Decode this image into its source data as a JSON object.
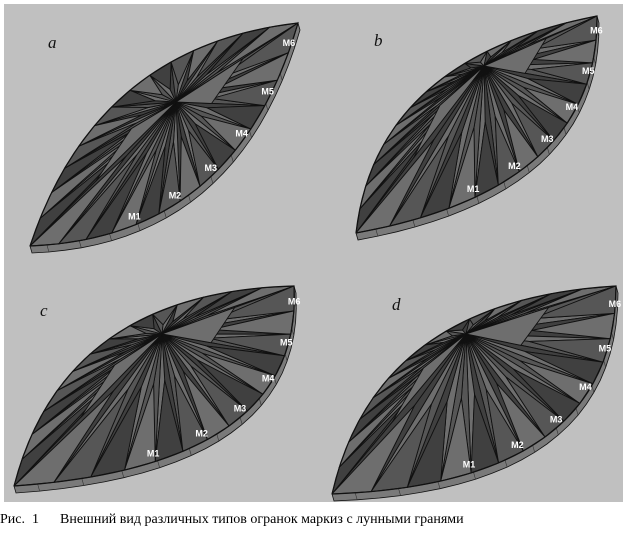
{
  "figure": {
    "panels": [
      {
        "letter": "a",
        "girdle_labels": [
          "M1",
          "M2",
          "M3",
          "M4",
          "M5",
          "M6"
        ]
      },
      {
        "letter": "b",
        "girdle_labels": [
          "M1",
          "M2",
          "M3",
          "M4",
          "M5",
          "M6"
        ]
      },
      {
        "letter": "c",
        "girdle_labels": [
          "M1",
          "M2",
          "M3",
          "M4",
          "M5",
          "M6"
        ]
      },
      {
        "letter": "d",
        "girdle_labels": [
          "M1",
          "M2",
          "M3",
          "M4",
          "M5",
          "M6"
        ]
      }
    ],
    "colors": {
      "background": "#c0c0c0",
      "facet_dark": "#404040",
      "facet_mid": "#565656",
      "facet_light": "#6e6e6e",
      "girdle": "#7a7a7a",
      "label": "#ffffff"
    }
  },
  "caption": {
    "prefix": "Рис.  1",
    "text": "Внешний вид различных типов огранок маркиз с лунными гранями"
  }
}
